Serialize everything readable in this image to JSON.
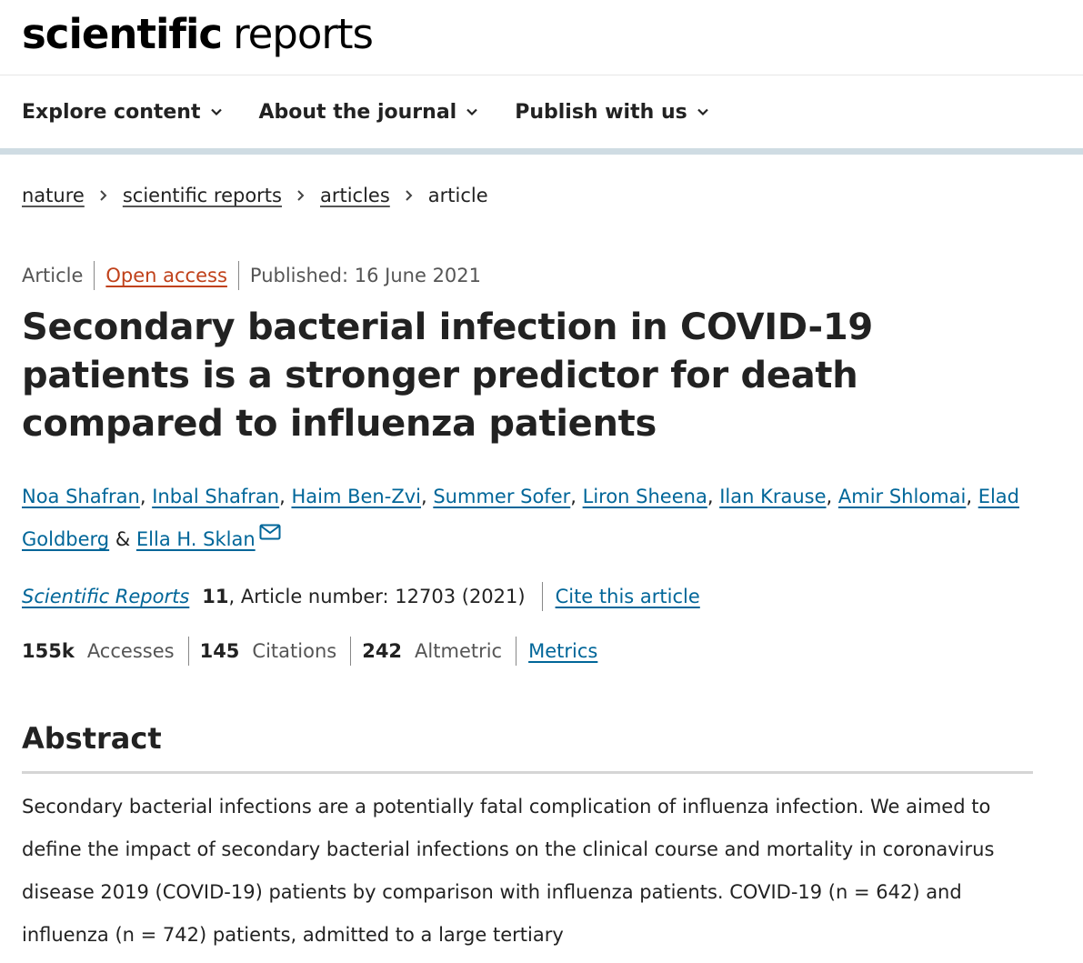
{
  "masthead": {
    "logo_bold": "scientific",
    "logo_light": "reports"
  },
  "nav": {
    "items": [
      {
        "label": "Explore content"
      },
      {
        "label": "About the journal"
      },
      {
        "label": "Publish with us"
      }
    ]
  },
  "breadcrumb": {
    "items": [
      "nature",
      "scientific reports",
      "articles"
    ],
    "current": "article"
  },
  "article": {
    "type": "Article",
    "access": "Open access",
    "published": "Published: 16 June 2021",
    "title": "Secondary bacterial infection in COVID-19 patients is a stronger predictor for death compared to influenza patients",
    "authors": [
      "Noa Shafran",
      "Inbal Shafran",
      "Haim Ben-Zvi",
      "Summer Sofer",
      "Liron Sheena",
      "Ilan Krause",
      "Amir Shlomai",
      "Elad Goldberg"
    ],
    "authors_joiner": "&",
    "last_author": "Ella H. Sklan",
    "journal": {
      "name": "Scientific Reports",
      "volume": "11",
      "rest": ", Article number: 12703 (2021)",
      "cite_label": "Cite this article"
    },
    "metrics": {
      "accesses_value": "155k",
      "accesses_label": "Accesses",
      "citations_value": "145",
      "citations_label": "Citations",
      "altmetric_value": "242",
      "altmetric_label": "Altmetric",
      "metrics_link": "Metrics"
    }
  },
  "abstract": {
    "heading": "Abstract",
    "text": "Secondary bacterial infections are a potentially fatal complication of influenza infection. We aimed to define the impact of secondary bacterial infections on the clinical course and mortality in coronavirus disease 2019 (COVID-19) patients by comparison with influenza patients. COVID-19 (n = 642) and influenza (n = 742) patients, admitted to a large tertiary"
  },
  "colors": {
    "link": "#006699",
    "open_access": "#c0411a",
    "nav_border": "#cfdce3"
  },
  "icons": {
    "nav_chevron": "chevron-down-icon",
    "crumb_separator": "chevron-right-icon",
    "corresponding": "mail-icon"
  }
}
